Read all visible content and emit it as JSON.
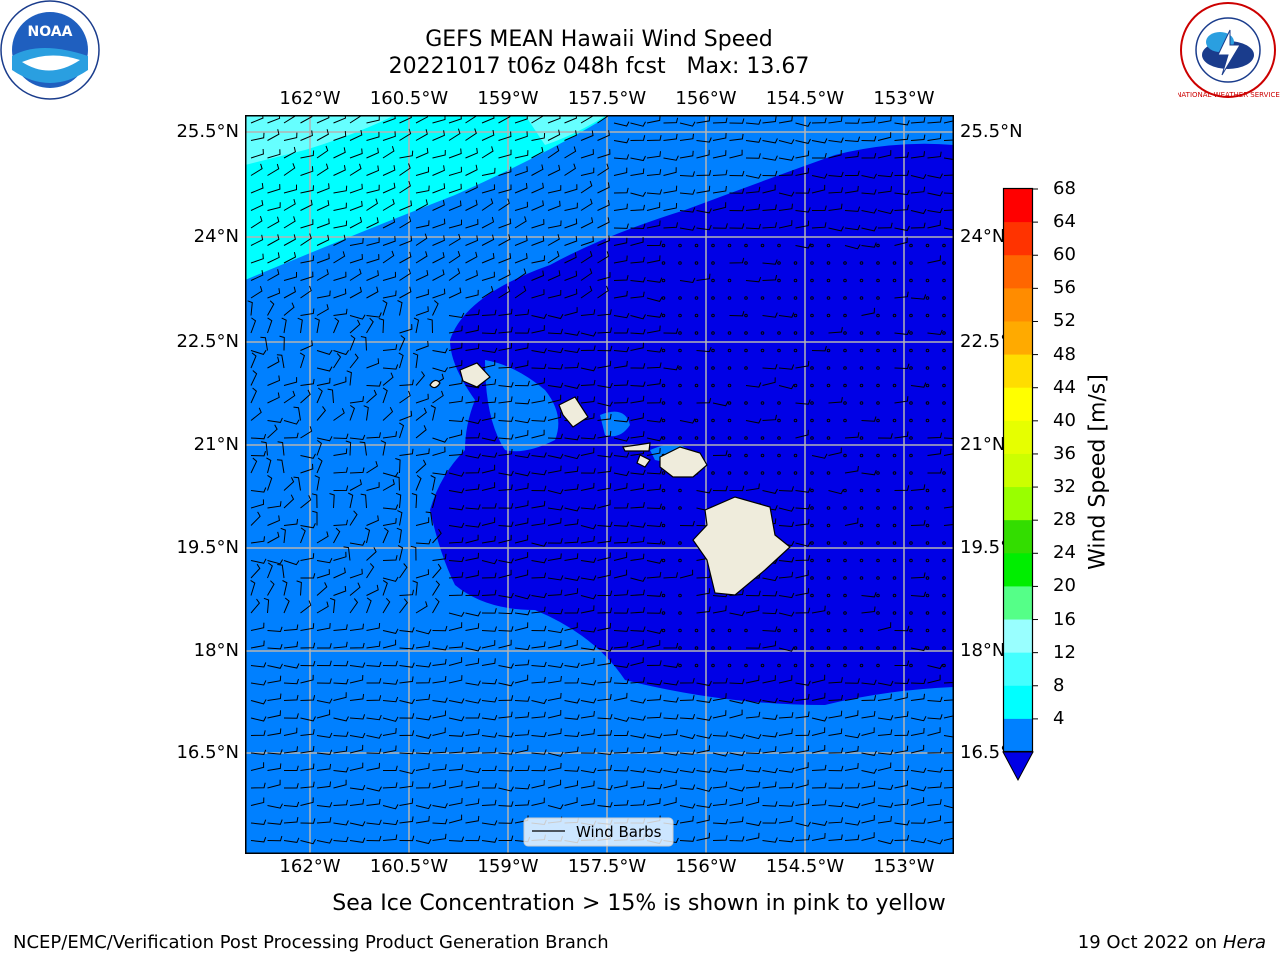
{
  "title": {
    "line1": "GEFS MEAN Hawaii Wind Speed",
    "line2": "20221017 t06z 048h fcst   Max: 13.67"
  },
  "map": {
    "lon_labels": [
      "162°W",
      "160.5°W",
      "159°W",
      "157.5°W",
      "156°W",
      "154.5°W",
      "153°W"
    ],
    "lat_labels": [
      "25.5°N",
      "24°N",
      "22.5°N",
      "21°N",
      "19.5°N",
      "18°N",
      "16.5°N"
    ],
    "legend_label": "Wind Barbs",
    "colors": {
      "ocean_light": "#0080ff",
      "ocean_dark": "#0000e6",
      "ocean_cyan": "#00ffff",
      "ocean_pale_cyan": "#66ffff",
      "land": "#efecdc",
      "gridline": "#b4b4b4"
    }
  },
  "colorbar": {
    "label": "Wind Speed [m/s]",
    "ticks": [
      "68",
      "64",
      "60",
      "56",
      "52",
      "48",
      "44",
      "40",
      "36",
      "32",
      "28",
      "24",
      "20",
      "16",
      "12",
      "8",
      "4"
    ],
    "colors_high_to_low": [
      "#ff0000",
      "#ff3300",
      "#ff6600",
      "#ff8c00",
      "#ffaa00",
      "#ffdd00",
      "#ffff00",
      "#e6ff00",
      "#ccff00",
      "#99ff00",
      "#33dd00",
      "#00ee00",
      "#55ff88",
      "#99ffff",
      "#44ffff",
      "#00ffff",
      "#0080ff"
    ],
    "extend_color": "#0000e6"
  },
  "note": "Sea Ice Concentration > 15% is shown in pink to yellow",
  "footer": {
    "left": "NCEP/EMC/Verification Post Processing Product Generation Branch",
    "date": "19 Oct 2022 on",
    "host": "Hera"
  },
  "logos": {
    "noaa": "NOAA",
    "nws": "NATIONAL WEATHER SERVICE"
  }
}
